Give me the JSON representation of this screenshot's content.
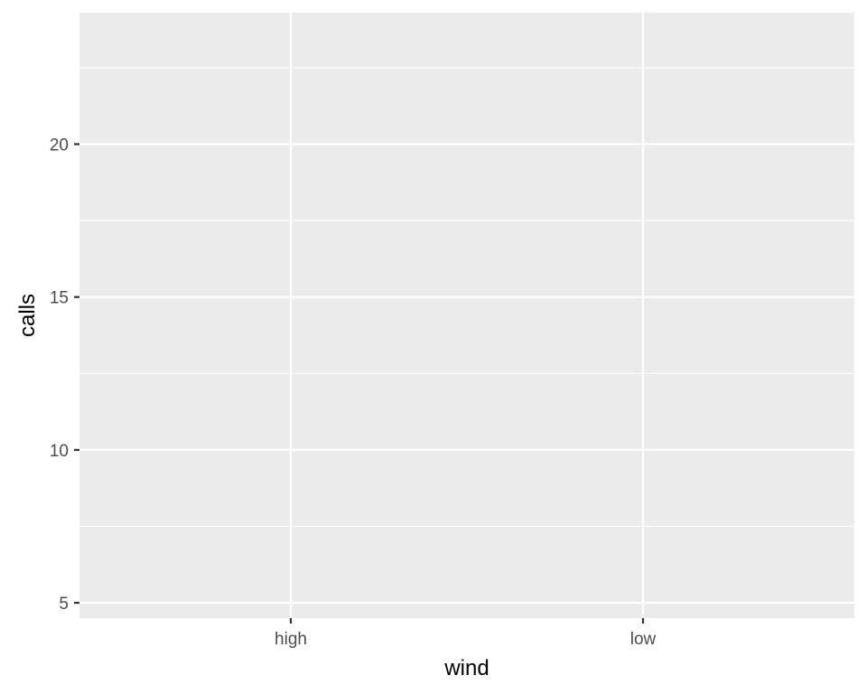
{
  "chart_data": {
    "type": "scatter",
    "title": "",
    "xlabel": "wind",
    "ylabel": "calls",
    "categories": [
      "high",
      "low"
    ],
    "ylim": [
      4.5,
      24.3
    ],
    "y_ticks": [
      5,
      10,
      15,
      20
    ],
    "series": [],
    "grid": true,
    "legend": "none",
    "colors": {
      "panel": "#ebebeb",
      "grid": "#ffffff",
      "tick": "#333333",
      "text": "#4d4d4d"
    }
  }
}
